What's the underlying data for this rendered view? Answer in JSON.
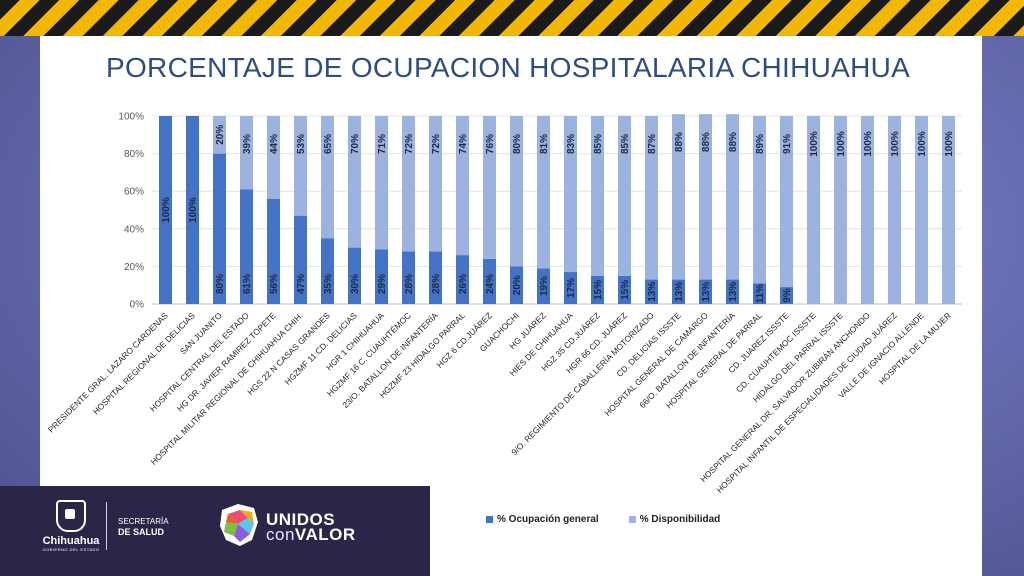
{
  "brand": {
    "gov_name": "Chihuahua",
    "gov_sub": "GOBIERNO DEL ESTADO",
    "secretaria_line1": "SECRETARÍA",
    "secretaria_line2": "DE SALUD",
    "campaign_line1": "UNIDOS",
    "campaign_con": "con",
    "campaign_valor": "VALOR"
  },
  "colors": {
    "ocupacion": "#4472c4",
    "disponibilidad": "#9cb3e0",
    "title": "#2e4d7f"
  },
  "chart_data": {
    "type": "bar",
    "stacked": true,
    "percent": true,
    "title": "PORCENTAJE DE OCUPACION HOSPITALARIA CHIHUAHUA",
    "ylim": [
      0,
      100
    ],
    "y_ticks": [
      "0%",
      "20%",
      "40%",
      "60%",
      "80%",
      "100%"
    ],
    "grid": true,
    "legend_position": "bottom",
    "categories": [
      "PRESIDENTE GRAL. LAZARO CARDENAS",
      "HOSPITAL REGIONAL DE DELICIAS",
      "SAN JUANITO",
      "HOSPITAL CENTRAL DEL ESTADO",
      "HG DR. JAVIER RAMIREZ TOPETE",
      "HOSPITAL MILITAR REGIONAL DE CHIHUAHUA CHIH.",
      "HGS 22 N CASAS GRANDES",
      "HGZMF 11 CD. DELICIAS",
      "HGR 1 CHIHUAHUA",
      "HGZMF 16 C. CUAUHTÉMOC",
      "23/O. BATALLON DE INFANTERÍA",
      "HGZMF 23 HIDALGO PARRAL",
      "HGZ 6 CD.JUÁREZ",
      "GUACHOCHI",
      "HG JUÁREZ",
      "HIES DE CHIHUAHUA",
      "HGZ 35 CD.JUÁREZ",
      "HGR 66 CD. JUÁREZ",
      "9/O. REGIMIENTO DE CABALLERÍA MOTORIZADO",
      "CD. DELICIAS ISSSTE",
      "HOSPITAL GENERAL DE CAMARGO",
      "66/O. BATALLON DE INFANTERÍA",
      "HOSPITAL GENERAL DE PARRAL",
      "CD. JUAREZ ISSSTE",
      "CD. CUAUHTEMOC ISSSTE",
      "HIDALGO DEL PARRAL ISSSTE",
      "HOSPITAL GENERAL DR. SALVADOR ZUBIRÁN ANCHONDO",
      "HOSPITAL INFANTIL DE ESPECIALIDADES DE CIUDAD JUÁREZ",
      "VALLE DE IGNACIO ALLENDE",
      "HOSPITAL DE LA MUJER"
    ],
    "series": [
      {
        "name": "% Ocupación general",
        "values": [
          100,
          100,
          80,
          61,
          56,
          47,
          35,
          30,
          29,
          28,
          28,
          26,
          24,
          20,
          19,
          17,
          15,
          15,
          13,
          13,
          13,
          13,
          11,
          9,
          0,
          0,
          0,
          0,
          0,
          0
        ],
        "labels": [
          "100%",
          "100%",
          "80%",
          "61%",
          "56%",
          "47%",
          "35%",
          "30%",
          "29%",
          "28%",
          "28%",
          "26%",
          "24%",
          "20%",
          "19%",
          "17%",
          "15%",
          "15%",
          "13%",
          "13%",
          "13%",
          "13%",
          "11%",
          "9%",
          "",
          "",
          "",
          "",
          "",
          ""
        ]
      },
      {
        "name": "% Disponibilidad",
        "values": [
          0,
          0,
          20,
          39,
          44,
          53,
          65,
          70,
          71,
          72,
          72,
          74,
          76,
          80,
          81,
          83,
          85,
          85,
          87,
          88,
          88,
          88,
          89,
          91,
          100,
          100,
          100,
          100,
          100,
          100
        ],
        "labels": [
          "",
          "",
          "20%",
          "39%",
          "44%",
          "53%",
          "65%",
          "70%",
          "71%",
          "72%",
          "72%",
          "74%",
          "76%",
          "80%",
          "81%",
          "83%",
          "85%",
          "85%",
          "87%",
          "88%",
          "88%",
          "88%",
          "89%",
          "91%",
          "100%",
          "100%",
          "100%",
          "100%",
          "100%",
          "100%"
        ]
      }
    ]
  }
}
